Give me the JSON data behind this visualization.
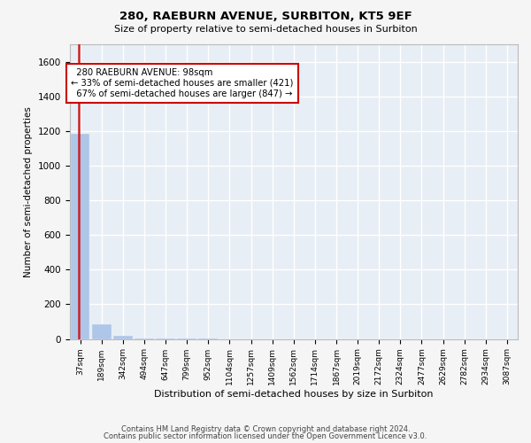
{
  "title": "280, RAEBURN AVENUE, SURBITON, KT5 9EF",
  "subtitle": "Size of property relative to semi-detached houses in Surbiton",
  "xlabel": "Distribution of semi-detached houses by size in Surbiton",
  "ylabel": "Number of semi-detached properties",
  "bin_labels": [
    "37sqm",
    "189sqm",
    "342sqm",
    "494sqm",
    "647sqm",
    "799sqm",
    "952sqm",
    "1104sqm",
    "1257sqm",
    "1409sqm",
    "1562sqm",
    "1714sqm",
    "1867sqm",
    "2019sqm",
    "2172sqm",
    "2324sqm",
    "2477sqm",
    "2629sqm",
    "2782sqm",
    "2934sqm",
    "3087sqm"
  ],
  "bar_values": [
    1185,
    85,
    18,
    4,
    2,
    1,
    1,
    0,
    0,
    0,
    0,
    0,
    0,
    0,
    0,
    0,
    0,
    0,
    0,
    0,
    0
  ],
  "bar_color": "#aec6e8",
  "highlight_color": "#cc2222",
  "property_label": "280 RAEBURN AVENUE: 98sqm",
  "pct_smaller": 33,
  "count_smaller": 421,
  "pct_larger": 67,
  "count_larger": 847,
  "ylim": [
    0,
    1700
  ],
  "yticks": [
    0,
    200,
    400,
    600,
    800,
    1000,
    1200,
    1400,
    1600
  ],
  "footer1": "Contains HM Land Registry data © Crown copyright and database right 2024.",
  "footer2": "Contains public sector information licensed under the Open Government Licence v3.0.",
  "bg_color": "#e8eef5",
  "grid_color": "#ffffff",
  "annotation_box_edge": "#cc0000",
  "fig_bg": "#f5f5f5"
}
